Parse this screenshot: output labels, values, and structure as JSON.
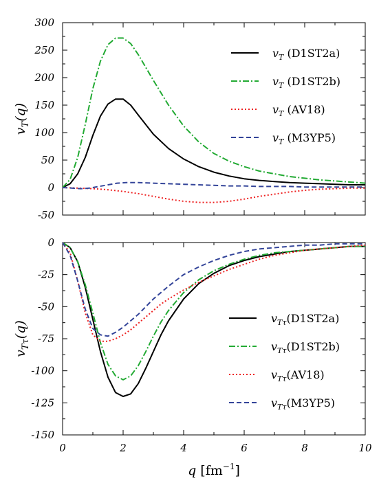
{
  "chart_data": [
    {
      "type": "line",
      "title": "",
      "xlabel": "",
      "ylabel": "v_T(q)",
      "ylabel_display": "vT(q)",
      "xlim": [
        0,
        10
      ],
      "ylim": [
        -50,
        300
      ],
      "xticks": [
        0,
        2,
        4,
        6,
        8,
        10
      ],
      "yticks": [
        -50,
        0,
        50,
        100,
        150,
        200,
        250,
        300
      ],
      "ytick_labels": [
        "-50",
        "0",
        "50",
        "100",
        "150",
        "200",
        "250",
        "300"
      ],
      "grid": false,
      "legend_position": "top-right",
      "series": [
        {
          "name": "v_T (D1ST2a)",
          "legend_main": "v",
          "legend_sub": "T",
          "legend_rest": " (D1ST2a)",
          "style": "solid",
          "color": "#000000",
          "x": [
            0,
            0.25,
            0.5,
            0.75,
            1,
            1.25,
            1.5,
            1.75,
            2,
            2.25,
            2.5,
            3,
            3.5,
            4,
            4.5,
            5,
            5.5,
            6,
            6.5,
            7,
            7.5,
            8,
            8.5,
            9,
            9.5,
            10
          ],
          "y": [
            0,
            7,
            25,
            55,
            95,
            130,
            152,
            161,
            161,
            150,
            132,
            97,
            71,
            52,
            38,
            28,
            21,
            16,
            13,
            11,
            9,
            8,
            7,
            6,
            5,
            5
          ]
        },
        {
          "name": "v_T (D1ST2b)",
          "legend_main": "v",
          "legend_sub": "T",
          "legend_rest": " (D1ST2b)",
          "style": "dashdot",
          "color": "#22aa33",
          "x": [
            0,
            0.25,
            0.5,
            0.75,
            1,
            1.25,
            1.5,
            1.75,
            2,
            2.25,
            2.5,
            3,
            3.5,
            4,
            4.5,
            5,
            5.5,
            6,
            6.5,
            7,
            7.5,
            8,
            8.5,
            9,
            9.5,
            10
          ],
          "y": [
            0,
            15,
            55,
            115,
            180,
            230,
            260,
            272,
            272,
            262,
            242,
            195,
            150,
            112,
            83,
            62,
            48,
            38,
            30,
            25,
            20,
            17,
            14,
            12,
            10,
            8
          ]
        },
        {
          "name": "v_T (AV18)",
          "legend_main": "v",
          "legend_sub": "T",
          "legend_rest": " (AV18)",
          "style": "dotted",
          "color": "#ee2222",
          "x": [
            0,
            0.5,
            1,
            1.5,
            2,
            2.5,
            3,
            3.5,
            4,
            4.5,
            5,
            5.5,
            6,
            6.5,
            7,
            7.5,
            8,
            8.5,
            9,
            9.5,
            10
          ],
          "y": [
            0,
            -1,
            -2,
            -4,
            -7,
            -11,
            -16,
            -21,
            -25,
            -27,
            -27,
            -25,
            -21,
            -16,
            -12,
            -8,
            -5,
            -3,
            -2,
            -1,
            -1
          ]
        },
        {
          "name": "v_T (M3YP5)",
          "legend_main": "v",
          "legend_sub": "T",
          "legend_rest": " (M3YP5)",
          "style": "dashed",
          "color": "#334499",
          "x": [
            0,
            0.3,
            0.6,
            0.9,
            1.2,
            1.5,
            1.8,
            2.1,
            2.5,
            3,
            3.5,
            4,
            4.5,
            5,
            5.5,
            6,
            6.5,
            7,
            7.5,
            8,
            8.5,
            9,
            9.5,
            10
          ],
          "y": [
            0,
            -1,
            -2,
            -1,
            2,
            5,
            8,
            9,
            9,
            8,
            7,
            6,
            5,
            4,
            3,
            3,
            2,
            2,
            2,
            1,
            1,
            1,
            1,
            1
          ]
        }
      ]
    },
    {
      "type": "line",
      "title": "",
      "xlabel": "q [fm⁻¹]",
      "xlabel_main": "q",
      "xlabel_unit": " [fm",
      "xlabel_sup": "−1",
      "xlabel_close": "]",
      "ylabel": "v_Tτ(q)",
      "ylabel_display": "vTτ(q)",
      "xlim": [
        0,
        10
      ],
      "ylim": [
        -150,
        0
      ],
      "xticks": [
        0,
        2,
        4,
        6,
        8,
        10
      ],
      "xtick_labels": [
        "0",
        "2",
        "4",
        "6",
        "8",
        "10"
      ],
      "yticks": [
        -150,
        -125,
        -100,
        -75,
        -50,
        -25,
        0
      ],
      "ytick_labels": [
        "-150",
        "-125",
        "-100",
        "-75",
        "-50",
        "-25",
        "0"
      ],
      "grid": false,
      "legend_position": "bottom-right",
      "series": [
        {
          "name": "v_Tτ(D1ST2a)",
          "legend_main": "v",
          "legend_sub": "Tτ",
          "legend_rest": "(D1ST2a)",
          "style": "solid",
          "color": "#000000",
          "x": [
            0,
            0.25,
            0.5,
            0.75,
            1,
            1.25,
            1.5,
            1.75,
            2,
            2.25,
            2.5,
            2.75,
            3,
            3.25,
            3.5,
            4,
            4.5,
            5,
            5.5,
            6,
            6.5,
            7,
            7.5,
            8,
            8.5,
            9,
            9.5,
            10
          ],
          "y": [
            0,
            -4,
            -15,
            -35,
            -60,
            -85,
            -105,
            -117,
            -120,
            -118,
            -110,
            -98,
            -85,
            -72,
            -61,
            -44,
            -32,
            -24,
            -18,
            -14,
            -11,
            -9,
            -7,
            -6,
            -5,
            -4,
            -3,
            -3
          ]
        },
        {
          "name": "v_Tτ(D1ST2b)",
          "legend_main": "v",
          "legend_sub": "Tτ",
          "legend_rest": "(D1ST2b)",
          "style": "dashdot",
          "color": "#22aa33",
          "x": [
            0,
            0.25,
            0.5,
            0.75,
            1,
            1.25,
            1.5,
            1.75,
            2,
            2.25,
            2.5,
            2.75,
            3,
            3.25,
            3.5,
            4,
            4.5,
            5,
            5.5,
            6,
            6.5,
            7,
            7.5,
            8,
            8.5,
            9,
            9.5,
            10
          ],
          "y": [
            0,
            -4,
            -15,
            -33,
            -55,
            -78,
            -95,
            -104,
            -107,
            -104,
            -96,
            -85,
            -73,
            -62,
            -53,
            -39,
            -29,
            -22,
            -17,
            -13,
            -10,
            -8,
            -7,
            -6,
            -5,
            -4,
            -3,
            -3
          ]
        },
        {
          "name": "v_Tτ(AV18)",
          "legend_main": "v",
          "legend_sub": "Tτ",
          "legend_rest": "(AV18)",
          "style": "dotted",
          "color": "#ee2222",
          "x": [
            0,
            0.25,
            0.5,
            0.75,
            1,
            1.25,
            1.5,
            1.75,
            2,
            2.25,
            2.5,
            2.75,
            3,
            3.25,
            3.5,
            4,
            4.5,
            5,
            5.5,
            6,
            6.5,
            7,
            7.5,
            8,
            8.5,
            9,
            9.5,
            10
          ],
          "y": [
            0,
            -8,
            -30,
            -55,
            -72,
            -77,
            -77,
            -75,
            -72,
            -68,
            -63,
            -58,
            -53,
            -48,
            -44,
            -37,
            -31,
            -26,
            -21,
            -17,
            -13,
            -10,
            -8,
            -6,
            -5,
            -4,
            -3,
            -2
          ]
        },
        {
          "name": "v_Tτ(M3YP5)",
          "legend_main": "v",
          "legend_sub": "Tτ",
          "legend_rest": "(M3YP5)",
          "style": "dashed",
          "color": "#334499",
          "x": [
            0,
            0.25,
            0.5,
            0.75,
            1,
            1.25,
            1.5,
            1.75,
            2,
            2.25,
            2.5,
            2.75,
            3,
            3.25,
            3.5,
            4,
            4.5,
            5,
            5.5,
            6,
            6.5,
            7,
            7.5,
            8,
            8.5,
            9,
            9.5,
            10
          ],
          "y": [
            0,
            -10,
            -30,
            -52,
            -67,
            -72,
            -73,
            -70,
            -66,
            -61,
            -56,
            -50,
            -44,
            -39,
            -34,
            -25,
            -19,
            -14,
            -10,
            -7,
            -5,
            -4,
            -3,
            -2,
            -2,
            -1,
            -1,
            -1
          ]
        }
      ]
    }
  ]
}
